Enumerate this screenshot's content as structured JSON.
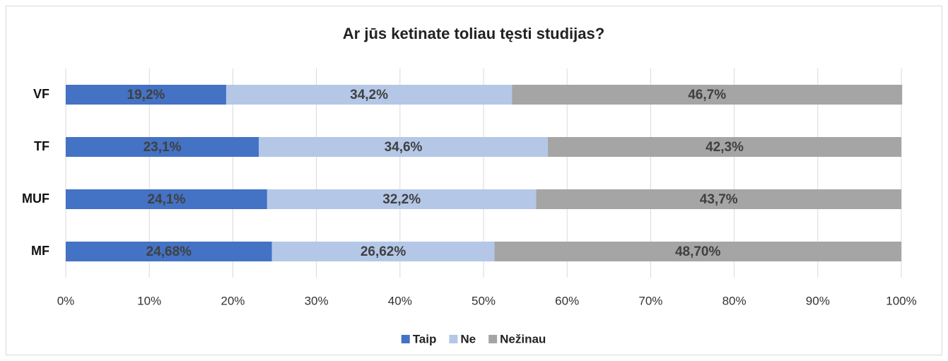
{
  "chart_data": {
    "type": "bar",
    "orientation": "horizontal",
    "stacked": true,
    "title": "Ar jūs ketinate toliau tęsti studijas?",
    "categories": [
      "VF",
      "TF",
      "MUF",
      "MF"
    ],
    "series": [
      {
        "name": "Taip",
        "color": "#4472c4",
        "values": [
          19.2,
          23.1,
          24.1,
          24.68
        ],
        "value_labels": [
          "19,2%",
          "23,1%",
          "24,1%",
          "24,68%"
        ]
      },
      {
        "name": "Ne",
        "color": "#b4c7e7",
        "values": [
          34.2,
          34.6,
          32.2,
          26.62
        ],
        "value_labels": [
          "34,2%",
          "34,6%",
          "32,2%",
          "26,62%"
        ]
      },
      {
        "name": "Nežinau",
        "color": "#a5a5a5",
        "values": [
          46.7,
          42.3,
          43.7,
          48.7
        ],
        "value_labels": [
          "46,7%",
          "42,3%",
          "43,7%",
          "48,70%"
        ]
      }
    ],
    "xlim": [
      0,
      100
    ],
    "xticks": [
      {
        "value": 0,
        "label": "0%"
      },
      {
        "value": 10,
        "label": "10%"
      },
      {
        "value": 20,
        "label": "20%"
      },
      {
        "value": 30,
        "label": "30%"
      },
      {
        "value": 40,
        "label": "40%"
      },
      {
        "value": 50,
        "label": "50%"
      },
      {
        "value": 60,
        "label": "60%"
      },
      {
        "value": 70,
        "label": "70%"
      },
      {
        "value": 80,
        "label": "80%"
      },
      {
        "value": 90,
        "label": "90%"
      },
      {
        "value": 100,
        "label": "100%"
      }
    ],
    "grid": true,
    "legend": "bottom"
  }
}
